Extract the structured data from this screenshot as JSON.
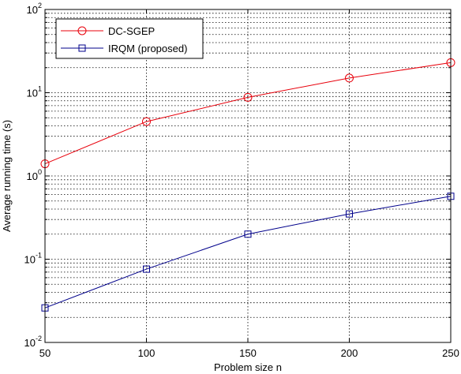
{
  "chart_data": {
    "type": "line",
    "title": "",
    "xlabel": "Problem size n",
    "ylabel": "Average running time (s)",
    "x": [
      50,
      100,
      150,
      200,
      250
    ],
    "xlim": [
      50,
      250
    ],
    "ylim": [
      0.01,
      100
    ],
    "y_scale": "log",
    "x_ticks": [
      "50",
      "100",
      "150",
      "200",
      "250"
    ],
    "y_ticks": [
      {
        "base": "10",
        "exp": "-2",
        "value": 0.01
      },
      {
        "base": "10",
        "exp": "-1",
        "value": 0.1
      },
      {
        "base": "10",
        "exp": "0",
        "value": 1
      },
      {
        "base": "10",
        "exp": "1",
        "value": 10
      },
      {
        "base": "10",
        "exp": "2",
        "value": 100
      }
    ],
    "grid": true,
    "legend_position": "top-left",
    "series": [
      {
        "name": "DC-SGEP",
        "values": [
          1.4,
          4.5,
          8.8,
          15,
          23
        ],
        "color": "#e8000b",
        "marker": "circle"
      },
      {
        "name": "IRQM (proposed)",
        "values": [
          0.026,
          0.076,
          0.2,
          0.35,
          0.57
        ],
        "color": "#00008b",
        "marker": "square"
      }
    ]
  }
}
